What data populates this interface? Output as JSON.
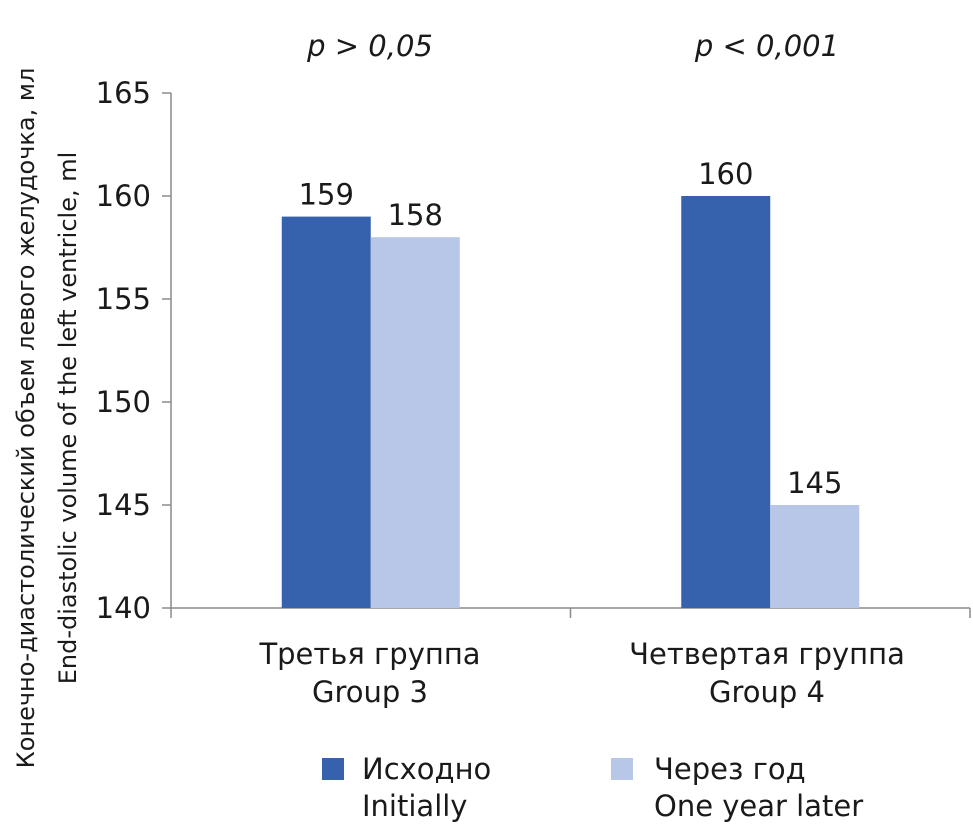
{
  "chart_data": {
    "type": "bar",
    "ylabel_line1": "Конечно-диастолический объем левого желудочка, мл",
    "ylabel_line2": "End-diastolic volume of the left ventricle, ml",
    "ylim": [
      140,
      165
    ],
    "yticks": [
      165,
      160,
      155,
      150,
      145,
      140
    ],
    "grid": false,
    "legend_position": "bottom",
    "categories": [
      {
        "line1": "Третья группа",
        "line2": "Group 3",
        "p_value": "p > 0,05"
      },
      {
        "line1": "Четвертая группа",
        "line2": "Group 4",
        "p_value": "p < 0,001"
      }
    ],
    "series": [
      {
        "name_ru": "Исходно",
        "name_en": "Initially",
        "color": "#3561AD",
        "values": [
          159,
          160
        ]
      },
      {
        "name_ru": "Через год",
        "name_en": "One year later",
        "color": "#B8C6E7",
        "values": [
          158,
          145
        ]
      }
    ]
  }
}
